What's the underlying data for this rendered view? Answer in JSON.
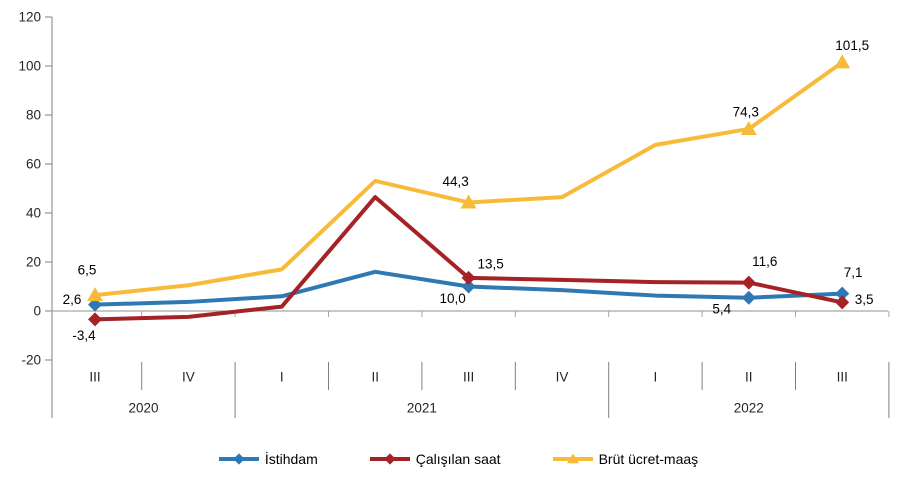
{
  "chart_data": {
    "type": "line",
    "title": "",
    "quarter_labels": [
      "III",
      "IV",
      "I",
      "II",
      "III",
      "IV",
      "I",
      "II",
      "III"
    ],
    "year_groups": [
      {
        "label": "2020",
        "quarters": 2
      },
      {
        "label": "2021",
        "quarters": 4
      },
      {
        "label": "2022",
        "quarters": 3
      }
    ],
    "y_axis": {
      "min": -20,
      "max": 120,
      "step": 20,
      "tick_labels": [
        "120",
        "100",
        "80",
        "60",
        "40",
        "20",
        "0",
        "-20"
      ]
    },
    "grid": "zero-line-only",
    "legend_position": "bottom",
    "series": [
      {
        "name": "İstihdam",
        "color": "#2E78B4",
        "marker": "diamond",
        "values": [
          2.6,
          3.7,
          6.0,
          16.0,
          10.0,
          8.5,
          6.3,
          5.4,
          7.1
        ]
      },
      {
        "name": "Çalışılan saat",
        "color": "#A52226",
        "marker": "diamond",
        "values": [
          -3.4,
          -2.4,
          1.8,
          46.5,
          13.5,
          12.7,
          11.8,
          11.6,
          3.5
        ]
      },
      {
        "name": "Brüt ücret-maaş",
        "color": "#F8BB39",
        "marker": "triangle",
        "values": [
          6.5,
          10.5,
          17.0,
          53.1,
          44.3,
          46.5,
          67.8,
          74.3,
          101.5
        ]
      }
    ],
    "marker_points": [
      0,
      4,
      7,
      8
    ],
    "data_labels": [
      {
        "series": 0,
        "point": 0,
        "text": "2,6",
        "ox": -23,
        "oy": -5
      },
      {
        "series": 0,
        "point": 4,
        "text": "10,0",
        "ox": -16,
        "oy": 12
      },
      {
        "series": 0,
        "point": 7,
        "text": "5,4",
        "ox": -27,
        "oy": 11
      },
      {
        "series": 0,
        "point": 8,
        "text": "7,1",
        "ox": 11,
        "oy": -21
      },
      {
        "series": 1,
        "point": 0,
        "text": "-3,4",
        "ox": -11,
        "oy": 16
      },
      {
        "series": 1,
        "point": 4,
        "text": "13,5",
        "ox": 22,
        "oy": -14
      },
      {
        "series": 1,
        "point": 7,
        "text": "11,6",
        "ox": 16,
        "oy": -21
      },
      {
        "series": 1,
        "point": 8,
        "text": "3,5",
        "ox": 22,
        "oy": -3
      },
      {
        "series": 2,
        "point": 0,
        "text": "6,5",
        "ox": -8,
        "oy": -25
      },
      {
        "series": 2,
        "point": 4,
        "text": "44,3",
        "ox": -13,
        "oy": -21
      },
      {
        "series": 2,
        "point": 7,
        "text": "74,3",
        "ox": -3,
        "oy": -17
      },
      {
        "series": 2,
        "point": 8,
        "text": "101,5",
        "ox": 10,
        "oy": -17
      }
    ],
    "colors": {
      "axis_line": "#808080",
      "zero_line": "#A6A6A6",
      "tick_text": "#262626",
      "data_label_text": "#000000"
    }
  }
}
